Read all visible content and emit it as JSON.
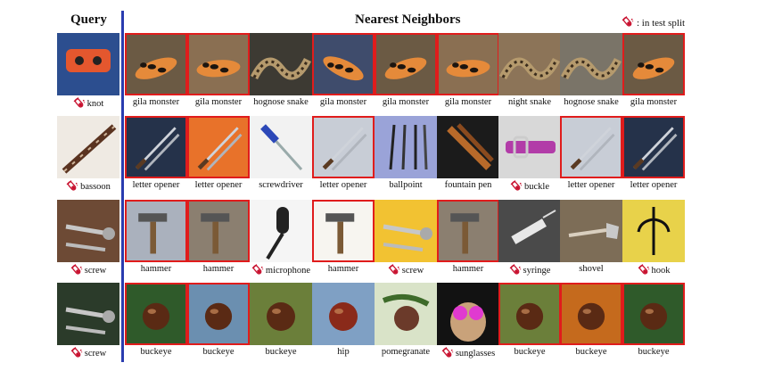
{
  "header": {
    "query": "Query",
    "nearest": "Nearest Neighbors",
    "legend": ": in test split",
    "legend_icon": "test-tube-icon"
  },
  "colors": {
    "divider": "#2a3cb0",
    "highlight_border": "#e01c1c",
    "test_tube": "#c8102e"
  },
  "rows": [
    {
      "query": {
        "label": "knot",
        "test": true
      },
      "neighbors": [
        {
          "label": "gila monster",
          "red": true,
          "test": false
        },
        {
          "label": "gila monster",
          "red": true,
          "test": false
        },
        {
          "label": "hognose snake",
          "red": false,
          "test": false
        },
        {
          "label": "gila monster",
          "red": true,
          "test": false
        },
        {
          "label": "gila monster",
          "red": true,
          "test": false
        },
        {
          "label": "gila monster",
          "red": true,
          "test": false
        },
        {
          "label": "night snake",
          "red": false,
          "test": false
        },
        {
          "label": "hognose snake",
          "red": false,
          "test": false
        },
        {
          "label": "gila monster",
          "red": true,
          "test": false
        }
      ]
    },
    {
      "query": {
        "label": "bassoon",
        "test": true
      },
      "neighbors": [
        {
          "label": "letter opener",
          "red": true,
          "test": false
        },
        {
          "label": "letter opener",
          "red": true,
          "test": false
        },
        {
          "label": "screwdriver",
          "red": false,
          "test": false
        },
        {
          "label": "letter opener",
          "red": true,
          "test": false
        },
        {
          "label": "ballpoint",
          "red": false,
          "test": false
        },
        {
          "label": "fountain pen",
          "red": false,
          "test": false
        },
        {
          "label": "buckle",
          "red": false,
          "test": true
        },
        {
          "label": "letter opener",
          "red": true,
          "test": false
        },
        {
          "label": "letter opener",
          "red": true,
          "test": false
        }
      ]
    },
    {
      "query": {
        "label": "screw",
        "test": true
      },
      "neighbors": [
        {
          "label": "hammer",
          "red": true,
          "test": false
        },
        {
          "label": "hammer",
          "red": true,
          "test": false
        },
        {
          "label": "microphone",
          "red": false,
          "test": true
        },
        {
          "label": "hammer",
          "red": true,
          "test": false
        },
        {
          "label": "screw",
          "red": false,
          "test": true
        },
        {
          "label": "hammer",
          "red": true,
          "test": false
        },
        {
          "label": "syringe",
          "red": false,
          "test": true
        },
        {
          "label": "shovel",
          "red": false,
          "test": false
        },
        {
          "label": "hook",
          "red": false,
          "test": true
        }
      ]
    },
    {
      "query": {
        "label": "screw",
        "test": true
      },
      "neighbors": [
        {
          "label": "buckeye",
          "red": true,
          "test": false
        },
        {
          "label": "buckeye",
          "red": true,
          "test": false
        },
        {
          "label": "buckeye",
          "red": false,
          "test": false
        },
        {
          "label": "hip",
          "red": false,
          "test": false
        },
        {
          "label": "pomegranate",
          "red": false,
          "test": false
        },
        {
          "label": "sunglasses",
          "red": false,
          "test": true
        },
        {
          "label": "buckeye",
          "red": true,
          "test": false
        },
        {
          "label": "buckeye",
          "red": true,
          "test": false
        },
        {
          "label": "buckeye",
          "red": true,
          "test": false
        }
      ]
    }
  ]
}
